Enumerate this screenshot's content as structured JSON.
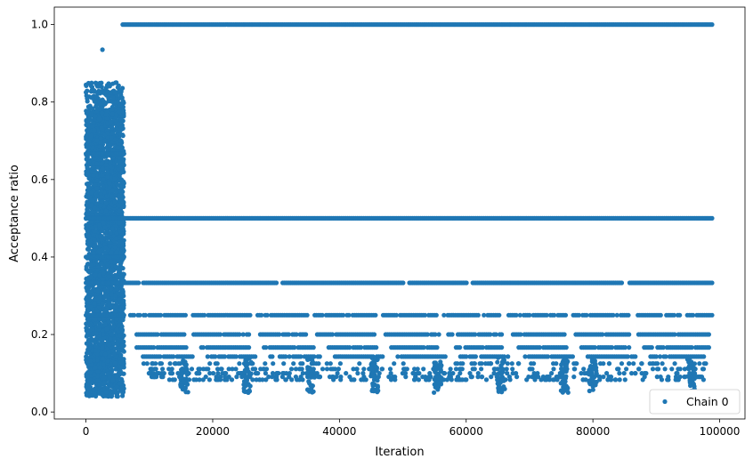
{
  "chart_data": {
    "type": "scatter",
    "title": "",
    "xlabel": "Iteration",
    "ylabel": "Acceptance ratio",
    "xlim": [
      -5000,
      104000
    ],
    "ylim": [
      -0.018,
      1.045
    ],
    "xticks": [
      0,
      20000,
      40000,
      60000,
      80000,
      100000
    ],
    "xtick_labels": [
      "0",
      "20000",
      "40000",
      "60000",
      "80000",
      "100000"
    ],
    "yticks": [
      0.0,
      0.2,
      0.4,
      0.6,
      0.8,
      1.0
    ],
    "ytick_labels": [
      "0.0",
      "0.2",
      "0.4",
      "0.6",
      "0.8",
      "1.0"
    ],
    "grid": false,
    "legend": {
      "position": "lower-right",
      "entries": [
        "Chain 0"
      ]
    },
    "marker_color": "#1f77b4",
    "series": [
      {
        "name": "Chain 0",
        "description_of_pattern": "dense band 0.03-0.86 for x in 0-6000; discrete levels afterwards",
        "burn_in_x_range": [
          0,
          6000
        ],
        "burn_in_y_range": [
          0.03,
          0.86
        ],
        "outlier_points": [
          [
            2600,
            0.935
          ]
        ],
        "levels": [
          {
            "y": 1.0,
            "x_range": [
              5800,
              99000
            ],
            "gaps": []
          },
          {
            "y": 0.5,
            "x_range": [
              5800,
              99000
            ],
            "gaps": []
          },
          {
            "y": 0.3333,
            "x_range": [
              5800,
              99000
            ],
            "gaps": [
              [
                8400,
                9000
              ],
              [
                30200,
                31000
              ],
              [
                50300,
                51000
              ],
              [
                60100,
                60800
              ],
              [
                84800,
                85600
              ]
            ]
          },
          {
            "y": 0.25,
            "x_range": [
              7000,
              99000
            ],
            "gaps": [
              [
                15800,
                16600
              ],
              [
                26000,
                26800
              ],
              [
                35000,
                35800
              ],
              [
                45800,
                46600
              ],
              [
                55600,
                56400
              ],
              [
                65800,
                66600
              ],
              [
                75800,
                76600
              ],
              [
                85800,
                86600
              ],
              [
                93800,
                94600
              ]
            ]
          },
          {
            "y": 0.2,
            "x_range": [
              8000,
              98500
            ],
            "gaps": [
              [
                15800,
                16800
              ],
              [
                26000,
                27200
              ],
              [
                35000,
                36200
              ],
              [
                45800,
                47000
              ],
              [
                55800,
                57000
              ],
              [
                65800,
                67200
              ],
              [
                75800,
                77000
              ],
              [
                85800,
                87000
              ]
            ]
          },
          {
            "y": 0.1667,
            "x_range": [
              8000,
              98500
            ],
            "gaps": [
              [
                16000,
                18000
              ],
              [
                26000,
                28000
              ],
              [
                36000,
                38000
              ],
              [
                46000,
                48000
              ],
              [
                56000,
                58000
              ],
              [
                66000,
                68000
              ],
              [
                76000,
                78000
              ],
              [
                86000,
                88000
              ]
            ]
          },
          {
            "y": 0.1429,
            "x_range": [
              9000,
              97500
            ],
            "gaps": [
              [
                17000,
                19000
              ],
              [
                27000,
                29000
              ],
              [
                37000,
                39000
              ],
              [
                47000,
                49000
              ],
              [
                57000,
                59000
              ],
              [
                67000,
                69000
              ],
              [
                77000,
                79000
              ],
              [
                87000,
                89000
              ]
            ]
          }
        ],
        "tail_clusters_x": [
          15500,
          25500,
          35500,
          45500,
          55500,
          65500,
          75500,
          80000,
          95500
        ],
        "tail_y_range": [
          0.05,
          0.14
        ]
      }
    ]
  }
}
